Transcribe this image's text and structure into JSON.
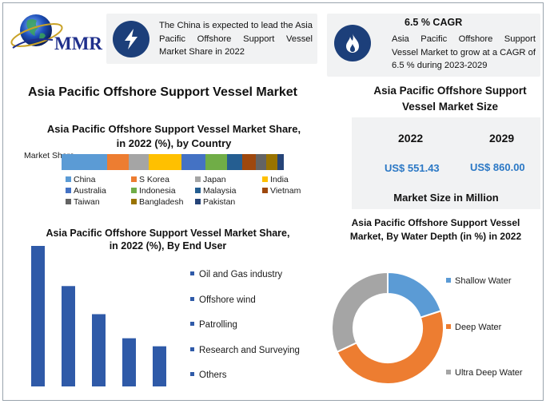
{
  "logo": {
    "text": "MMR"
  },
  "info1": {
    "text": "The China is expected to lead the Asia Pacific Offshore Support Vessel Market Share in 2022"
  },
  "info2": {
    "title": "6.5 % CAGR",
    "text": "Asia Pacific Offshore Support Vessel Market to grow at a CAGR of 6.5 % during 2023-2029"
  },
  "main_title": "Asia Pacific Offshore Support Vessel Market",
  "market_size": {
    "title": "Asia Pacific Offshore Support Vessel Market Size",
    "year1": "2022",
    "value1": "US$ 551.43",
    "year2": "2029",
    "value2": "US$ 860.00",
    "unit": "Market Size in Million"
  },
  "chart_data": [
    {
      "type": "bar",
      "orientation": "horizontal-stacked",
      "title": "Asia Pacific Offshore Support Vessel Market Share, in 2022 (%), by Country",
      "ylabel": "Market Share",
      "categories": [
        "Market Share"
      ],
      "series": [
        {
          "name": "China",
          "values": [
            21
          ],
          "color": "#5b9bd5"
        },
        {
          "name": "S Korea",
          "values": [
            10
          ],
          "color": "#ed7d31"
        },
        {
          "name": "Japan",
          "values": [
            9
          ],
          "color": "#a5a5a5"
        },
        {
          "name": "India",
          "values": [
            15
          ],
          "color": "#ffc000"
        },
        {
          "name": "Australia",
          "values": [
            11
          ],
          "color": "#4472c4"
        },
        {
          "name": "Indonesia",
          "values": [
            10
          ],
          "color": "#70ad47"
        },
        {
          "name": "Malaysia",
          "values": [
            7
          ],
          "color": "#255e91"
        },
        {
          "name": "Vietnam",
          "values": [
            6
          ],
          "color": "#9e480e"
        },
        {
          "name": "Taiwan",
          "values": [
            5
          ],
          "color": "#636363"
        },
        {
          "name": "Bangladesh",
          "values": [
            5
          ],
          "color": "#997300"
        },
        {
          "name": "Pakistan",
          "values": [
            3
          ],
          "color": "#264478"
        }
      ]
    },
    {
      "type": "bar",
      "title": "Asia Pacific Offshore Support Vessel Market Share, in 2022 (%), By End User",
      "categories": [
        "Oil and Gas industry",
        "Offshore wind",
        "Patrolling",
        "Research and Surveying",
        "Others"
      ],
      "values": [
        35,
        25,
        18,
        12,
        10
      ],
      "ylim": [
        0,
        35
      ],
      "color": "#2f5aa8"
    },
    {
      "type": "pie",
      "donut": true,
      "title": "Asia Pacific Offshore Support Vessel Market, By Water Depth (in %) in 2022",
      "categories": [
        "Shallow Water",
        "Deep Water",
        "Ultra Deep Water"
      ],
      "values": [
        20,
        48,
        32
      ],
      "colors": [
        "#5b9bd5",
        "#ed7d31",
        "#a5a5a5"
      ]
    }
  ]
}
